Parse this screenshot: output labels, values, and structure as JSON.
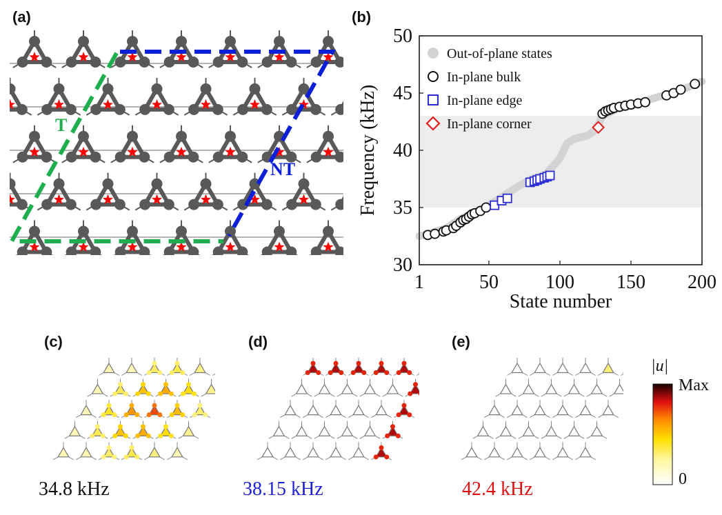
{
  "panels": {
    "a": {
      "label": "(a)",
      "region_t": "T",
      "region_nt": "NT"
    },
    "b": {
      "label": "(b)"
    },
    "c": {
      "label": "(c)",
      "freq": "34.8 kHz",
      "freq_color": "#111111"
    },
    "d": {
      "label": "(d)",
      "freq": "38.15 kHz",
      "freq_color": "#1f1fd6"
    },
    "e": {
      "label": "(e)",
      "freq": "42.4 kHz",
      "freq_color": "#e01010"
    }
  },
  "colors": {
    "lattice": "#595959",
    "star": "#ff0000",
    "green_boundary": "#1fae4d",
    "blue_boundary": "#0a1fd8",
    "bulk_marker": "#111111",
    "edge_marker": "#2b2bd6",
    "corner_marker": "#e01e1e",
    "out_of_plane": "#d3d3d3",
    "gap_band": "#ededed"
  },
  "colorbar": {
    "title": "|u|",
    "max_label": "Max",
    "min_label": "0"
  },
  "chart_data": {
    "type": "scatter",
    "xlabel": "State number",
    "ylabel": "Frequency (kHz)",
    "xlim": [
      1,
      200
    ],
    "ylim": [
      30,
      50
    ],
    "xticks": [
      1,
      50,
      100,
      150,
      200
    ],
    "yticks": [
      30,
      35,
      40,
      45,
      50
    ],
    "gap_band": [
      35,
      43
    ],
    "legend": [
      {
        "label": "Out-of-plane states",
        "marker": "filled-circle"
      },
      {
        "label": "In-plane bulk",
        "marker": "circle"
      },
      {
        "label": "In-plane edge",
        "marker": "square"
      },
      {
        "label": "In-plane corner",
        "marker": "diamond"
      }
    ],
    "series": [
      {
        "name": "Out-of-plane states",
        "points": [
          [
            1,
            32.5
          ],
          [
            10,
            32.8
          ],
          [
            20,
            33.2
          ],
          [
            30,
            34.0
          ],
          [
            40,
            34.6
          ],
          [
            50,
            35.2
          ],
          [
            60,
            36.0
          ],
          [
            70,
            36.8
          ],
          [
            80,
            37.5
          ],
          [
            90,
            37.9
          ],
          [
            100,
            39.3
          ],
          [
            105,
            40.6
          ],
          [
            110,
            41.0
          ],
          [
            120,
            41.3
          ],
          [
            125,
            41.8
          ],
          [
            130,
            43.0
          ],
          [
            140,
            43.6
          ],
          [
            150,
            43.9
          ],
          [
            160,
            44.3
          ],
          [
            170,
            44.7
          ],
          [
            180,
            45.0
          ],
          [
            190,
            45.5
          ],
          [
            200,
            46.0
          ]
        ]
      },
      {
        "name": "In-plane bulk",
        "points": [
          [
            7,
            32.6
          ],
          [
            12,
            32.7
          ],
          [
            18,
            32.9
          ],
          [
            20,
            33.0
          ],
          [
            25,
            33.2
          ],
          [
            27,
            33.4
          ],
          [
            30,
            33.7
          ],
          [
            32,
            33.9
          ],
          [
            34,
            34.0
          ],
          [
            36,
            34.2
          ],
          [
            38,
            34.4
          ],
          [
            40,
            34.5
          ],
          [
            44,
            34.7
          ],
          [
            48,
            35.0
          ],
          [
            130,
            43.2
          ],
          [
            132,
            43.4
          ],
          [
            134,
            43.5
          ],
          [
            136,
            43.6
          ],
          [
            138,
            43.7
          ],
          [
            142,
            43.8
          ],
          [
            146,
            43.9
          ],
          [
            150,
            44.0
          ],
          [
            155,
            44.1
          ],
          [
            160,
            44.2
          ],
          [
            175,
            44.8
          ],
          [
            180,
            45.0
          ],
          [
            185,
            45.3
          ],
          [
            195,
            45.8
          ]
        ]
      },
      {
        "name": "In-plane edge",
        "points": [
          [
            54,
            35.2
          ],
          [
            59,
            35.6
          ],
          [
            63,
            35.8
          ],
          [
            79,
            37.2
          ],
          [
            82,
            37.3
          ],
          [
            84,
            37.4
          ],
          [
            86,
            37.5
          ],
          [
            89,
            37.6
          ],
          [
            91,
            37.7
          ],
          [
            93,
            37.8
          ]
        ]
      },
      {
        "name": "In-plane corner",
        "points": [
          [
            127,
            42.0
          ]
        ]
      }
    ]
  }
}
